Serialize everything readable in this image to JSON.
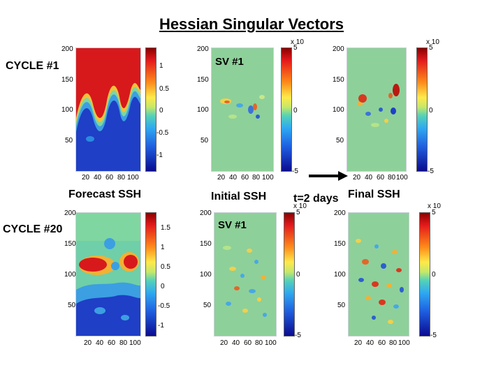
{
  "header": {
    "title": "Hessian Singular Vectors"
  },
  "rows": [
    {
      "cycle_label": "CYCLE #1"
    },
    {
      "cycle_label": "CYCLE #20"
    }
  ],
  "columns": {
    "forecast": "Forecast SSH",
    "initial": "Initial SSH",
    "final": "Final SSH",
    "arrow_label": "t=2 days"
  },
  "sv_label": "SV #1",
  "axes": {
    "y_ticks": [
      "200",
      "150",
      "100",
      "50"
    ],
    "x_ticks": [
      "20",
      "40",
      "60",
      "80",
      "100"
    ]
  },
  "colorbars": {
    "ssh_row1": [
      "1",
      "0.5",
      "0",
      "-0.5",
      "-1"
    ],
    "ssh_row2": [
      "1.5",
      "1",
      "0.5",
      "0",
      "-0.5",
      "-1"
    ],
    "sv": [
      "5",
      "0",
      "-5"
    ],
    "scale": "x 10"
  },
  "colors": {
    "red": "#d7191c",
    "blue": "#2039c8",
    "cyan_green": "#7fd6a0",
    "background_sv": "#8ed09a"
  }
}
